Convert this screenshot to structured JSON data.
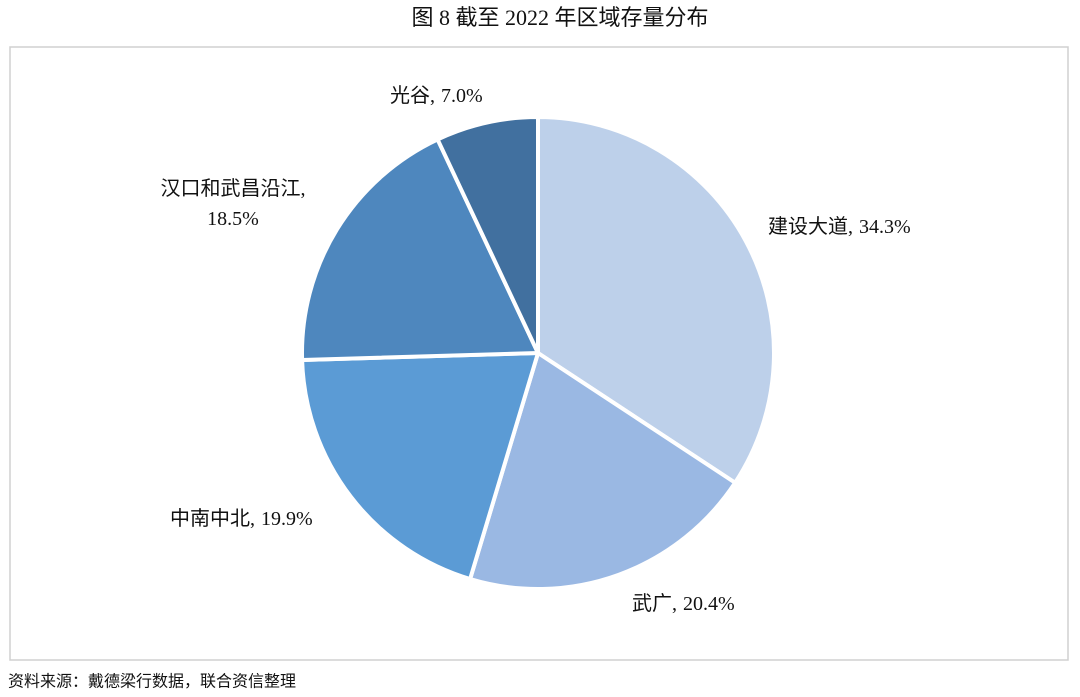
{
  "title": "图 8   截至 2022 年区域存量分布",
  "chart_data": {
    "type": "pie",
    "categories": [
      "建设大道,",
      "武广,",
      "中南中北,",
      "汉口和武昌沿江,",
      "光谷,"
    ],
    "values": [
      34.3,
      20.4,
      19.9,
      18.5,
      7.0
    ],
    "value_labels": [
      "34.3%",
      "20.4%",
      "19.9%",
      "18.5%",
      "7.0%"
    ],
    "colors": [
      "#bdd0ea",
      "#9ab8e3",
      "#5b9bd5",
      "#4e87be",
      "#41709f"
    ]
  },
  "source": "资料来源：戴德梁行数据，联合资信整理"
}
